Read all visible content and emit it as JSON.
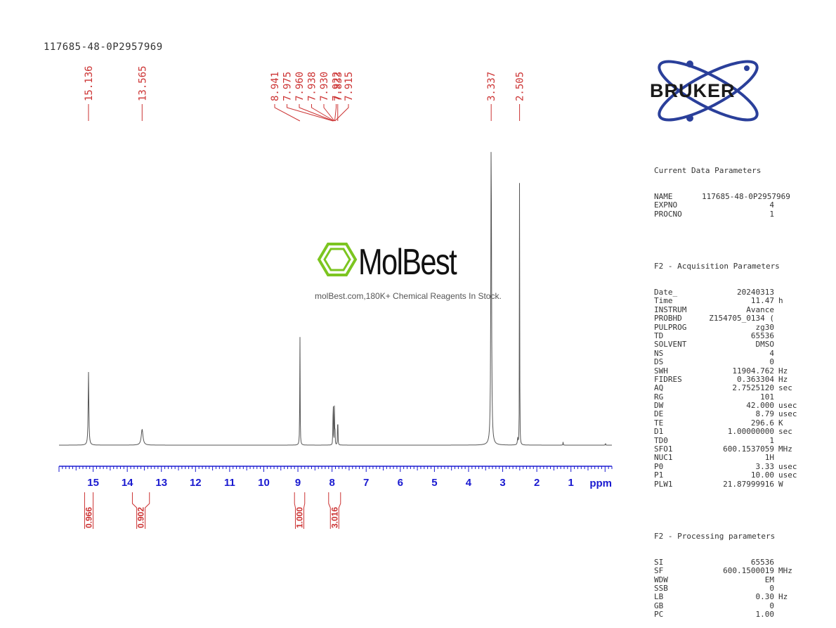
{
  "sample_name": "117685-48-0P2957969",
  "brand": {
    "name": "BRUKER",
    "color": "#2a3f9a"
  },
  "watermark": {
    "name": "MolBest",
    "tagline": "molBest.com,180K+ Chemical Reagents In Stock.",
    "icon": "benzene-ring-icon",
    "icon_color": "#7cc520"
  },
  "colors": {
    "peak_labels": "#cc3333",
    "axis": "#1a1ad0",
    "spectrum": "#555555"
  },
  "parameters": {
    "current": {
      "title": "Current Data Parameters",
      "rows": [
        {
          "key": "NAME",
          "value": "117685-48-0P2957969",
          "unit": ""
        },
        {
          "key": "EXPNO",
          "value": "4",
          "unit": ""
        },
        {
          "key": "PROCNO",
          "value": "1",
          "unit": ""
        }
      ]
    },
    "acquisition": {
      "title": "F2 - Acquisition Parameters",
      "rows": [
        {
          "key": "Date_",
          "value": "20240313",
          "unit": ""
        },
        {
          "key": "Time",
          "value": "11.47",
          "unit": "h"
        },
        {
          "key": "INSTRUM",
          "value": "Avance",
          "unit": ""
        },
        {
          "key": "PROBHD",
          "value": "Z154705_0134 (",
          "unit": ""
        },
        {
          "key": "PULPROG",
          "value": "zg30",
          "unit": ""
        },
        {
          "key": "TD",
          "value": "65536",
          "unit": ""
        },
        {
          "key": "SOLVENT",
          "value": "DMSO",
          "unit": ""
        },
        {
          "key": "NS",
          "value": "4",
          "unit": ""
        },
        {
          "key": "DS",
          "value": "0",
          "unit": ""
        },
        {
          "key": "SWH",
          "value": "11904.762",
          "unit": "Hz"
        },
        {
          "key": "FIDRES",
          "value": "0.363304",
          "unit": "Hz"
        },
        {
          "key": "AQ",
          "value": "2.7525120",
          "unit": "sec"
        },
        {
          "key": "RG",
          "value": "101",
          "unit": ""
        },
        {
          "key": "DW",
          "value": "42.000",
          "unit": "usec"
        },
        {
          "key": "DE",
          "value": "8.79",
          "unit": "usec"
        },
        {
          "key": "TE",
          "value": "296.6",
          "unit": "K"
        },
        {
          "key": "D1",
          "value": "1.00000000",
          "unit": "sec"
        },
        {
          "key": "TD0",
          "value": "1",
          "unit": ""
        },
        {
          "key": "SFO1",
          "value": "600.1537059",
          "unit": "MHz"
        },
        {
          "key": "NUC1",
          "value": "1H",
          "unit": ""
        },
        {
          "key": "P0",
          "value": "3.33",
          "unit": "usec"
        },
        {
          "key": "P1",
          "value": "10.00",
          "unit": "usec"
        },
        {
          "key": "PLW1",
          "value": "21.87999916",
          "unit": "W"
        }
      ]
    },
    "processing": {
      "title": "F2 - Processing parameters",
      "rows": [
        {
          "key": "SI",
          "value": "65536",
          "unit": ""
        },
        {
          "key": "SF",
          "value": "600.1500019",
          "unit": "MHz"
        },
        {
          "key": "WDW",
          "value": "EM",
          "unit": ""
        },
        {
          "key": "SSB",
          "value": "0",
          "unit": ""
        },
        {
          "key": "LB",
          "value": "0.30",
          "unit": "Hz"
        },
        {
          "key": "GB",
          "value": "0",
          "unit": ""
        },
        {
          "key": "PC",
          "value": "1.00",
          "unit": ""
        }
      ]
    }
  },
  "chart_data": {
    "type": "line",
    "title": "",
    "xlabel": "ppm",
    "ylabel": "",
    "xlim": [
      16.0,
      -0.2
    ],
    "x_reversed": true,
    "grid": false,
    "ticks": [
      15,
      14,
      13,
      12,
      11,
      10,
      9,
      8,
      7,
      6,
      5,
      4,
      3,
      2,
      1
    ],
    "peak_labels": [
      {
        "label": "15.136",
        "ppm": 15.136
      },
      {
        "label": "13.565",
        "ppm": 13.565
      },
      {
        "label": "8.941",
        "ppm": 8.941
      },
      {
        "label": "7.975",
        "ppm": 7.975
      },
      {
        "label": "7.960",
        "ppm": 7.96
      },
      {
        "label": "7.938",
        "ppm": 7.938
      },
      {
        "label": "7.930",
        "ppm": 7.93
      },
      {
        "label": "7.922",
        "ppm": 7.922
      },
      {
        "label": "7.915",
        "ppm": 7.915
      },
      {
        "label": "7.833",
        "ppm": 7.833
      },
      {
        "label": "3.337",
        "ppm": 3.337
      },
      {
        "label": "2.505",
        "ppm": 2.505
      }
    ],
    "peaks": [
      {
        "ppm": 15.136,
        "intensity": 0.23,
        "width": 0.012
      },
      {
        "ppm": 13.565,
        "intensity": 0.05,
        "width": 0.03
      },
      {
        "ppm": 8.941,
        "intensity": 0.36,
        "width": 0.006
      },
      {
        "ppm": 7.975,
        "intensity": 0.12,
        "width": 0.004
      },
      {
        "ppm": 7.96,
        "intensity": 0.13,
        "width": 0.004
      },
      {
        "ppm": 7.93,
        "intensity": 0.12,
        "width": 0.004
      },
      {
        "ppm": 7.915,
        "intensity": 0.1,
        "width": 0.004
      },
      {
        "ppm": 7.833,
        "intensity": 0.13,
        "width": 0.005
      },
      {
        "ppm": 3.337,
        "intensity": 1.0,
        "width": 0.012
      },
      {
        "ppm": 2.505,
        "intensity": 1.0,
        "width": 0.004
      },
      {
        "ppm": 2.56,
        "intensity": 0.02,
        "width": 0.01
      },
      {
        "ppm": 1.23,
        "intensity": 0.01,
        "width": 0.005
      },
      {
        "ppm": -0.01,
        "intensity": 0.015,
        "width": 0.003
      }
    ],
    "integrals": [
      {
        "label": "0.966",
        "ppm_start": 15.25,
        "ppm_end": 15.0
      },
      {
        "label": "0.902",
        "ppm_start": 13.85,
        "ppm_end": 13.35
      },
      {
        "label": "1.000",
        "ppm_start": 9.1,
        "ppm_end": 8.8
      },
      {
        "label": "3.016",
        "ppm_start": 8.1,
        "ppm_end": 7.75
      }
    ]
  }
}
